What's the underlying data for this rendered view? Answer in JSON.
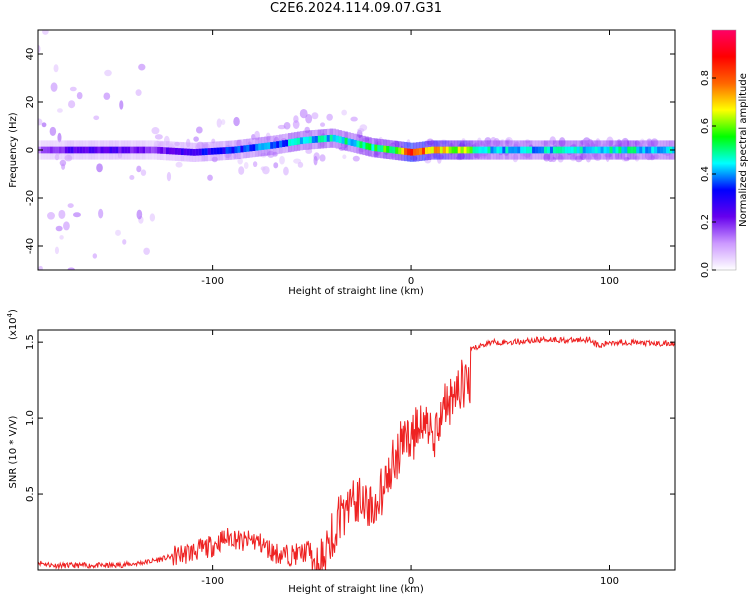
{
  "title": "C2E6.2024.114.09.07.G31",
  "chart_data": [
    {
      "type": "heatmap",
      "name": "spectrogram",
      "xlabel": "Height of straight line (km)",
      "ylabel": "Frequency (Hz)",
      "xlim": [
        -188,
        133
      ],
      "ylim": [
        -50,
        50
      ],
      "xticks": [
        -100,
        0,
        100
      ],
      "xtick_labels": [
        "-100",
        "0",
        "100"
      ],
      "yticks": [
        -40,
        -20,
        0,
        20,
        40
      ],
      "ytick_labels": [
        "-40",
        "-20",
        "0",
        "20",
        "40"
      ],
      "grid": false,
      "track": {
        "x": [
          -188,
          -170,
          -150,
          -130,
          -110,
          -90,
          -70,
          -55,
          -40,
          -30,
          -20,
          -10,
          0,
          10,
          20,
          40,
          60,
          80,
          100,
          120,
          133
        ],
        "freq": [
          0,
          0,
          0,
          0,
          -1,
          0,
          2,
          4,
          5,
          3,
          1,
          0,
          -1,
          0,
          0,
          0,
          0,
          0,
          0,
          0,
          0
        ],
        "amplitude": [
          0.15,
          0.25,
          0.25,
          0.2,
          0.3,
          0.35,
          0.4,
          0.45,
          0.45,
          0.5,
          0.55,
          0.6,
          0.9,
          0.8,
          0.7,
          0.45,
          0.45,
          0.45,
          0.5,
          0.45,
          0.45
        ]
      },
      "colorbar": {
        "label": "Normalized spectral amplitude",
        "range": [
          0.0,
          1.0
        ],
        "ticks": [
          0.0,
          0.2,
          0.4,
          0.6,
          0.8
        ],
        "tick_labels": [
          "0.0",
          "0.2",
          "0.4",
          "0.6",
          "0.8"
        ],
        "colors": [
          "#ffffff",
          "#cc99ff",
          "#6600ee",
          "#0000ff",
          "#00ffff",
          "#00ff00",
          "#ffff00",
          "#ff6600",
          "#ff0000",
          "#ff0066"
        ]
      }
    },
    {
      "type": "line",
      "name": "snr",
      "xlabel": "Height of straight line (km)",
      "ylabel": "SNR (10 * V/V)",
      "y_multiplier_label": "(x10",
      "y_multiplier_exp": "4",
      "xlim": [
        -188,
        133
      ],
      "ylim": [
        0,
        1.58
      ],
      "xticks": [
        -100,
        0,
        100
      ],
      "xtick_labels": [
        "-100",
        "0",
        "100"
      ],
      "yticks": [
        0.5,
        1.0,
        1.5
      ],
      "ytick_labels": [
        "0.5",
        "1.0",
        "1.5"
      ],
      "grid": false,
      "color": "#ee2222",
      "series": [
        {
          "x": [
            -188,
            -180,
            -170,
            -160,
            -150,
            -140,
            -130,
            -120,
            -110,
            -100,
            -95,
            -90,
            -85,
            -80,
            -75,
            -70,
            -65,
            -60,
            -55,
            -50,
            -45,
            -40,
            -35,
            -30,
            -25,
            -20,
            -15,
            -10,
            -5,
            0,
            5,
            10,
            12,
            15,
            20,
            25,
            30,
            40,
            50,
            60,
            70,
            80,
            90,
            95,
            100,
            110,
            120,
            133
          ],
          "values": [
            0.05,
            0.03,
            0.03,
            0.03,
            0.03,
            0.04,
            0.06,
            0.09,
            0.12,
            0.16,
            0.2,
            0.22,
            0.18,
            0.2,
            0.17,
            0.12,
            0.1,
            0.1,
            0.11,
            0.14,
            0.22,
            0.4,
            0.55,
            0.6,
            0.65,
            0.6,
            0.7,
            0.85,
            1.0,
            1.05,
            1.1,
            1.15,
            1.0,
            1.2,
            1.3,
            1.4,
            1.45,
            1.5,
            1.5,
            1.51,
            1.52,
            1.51,
            1.52,
            1.47,
            1.5,
            1.5,
            1.49,
            1.49
          ]
        }
      ]
    }
  ]
}
